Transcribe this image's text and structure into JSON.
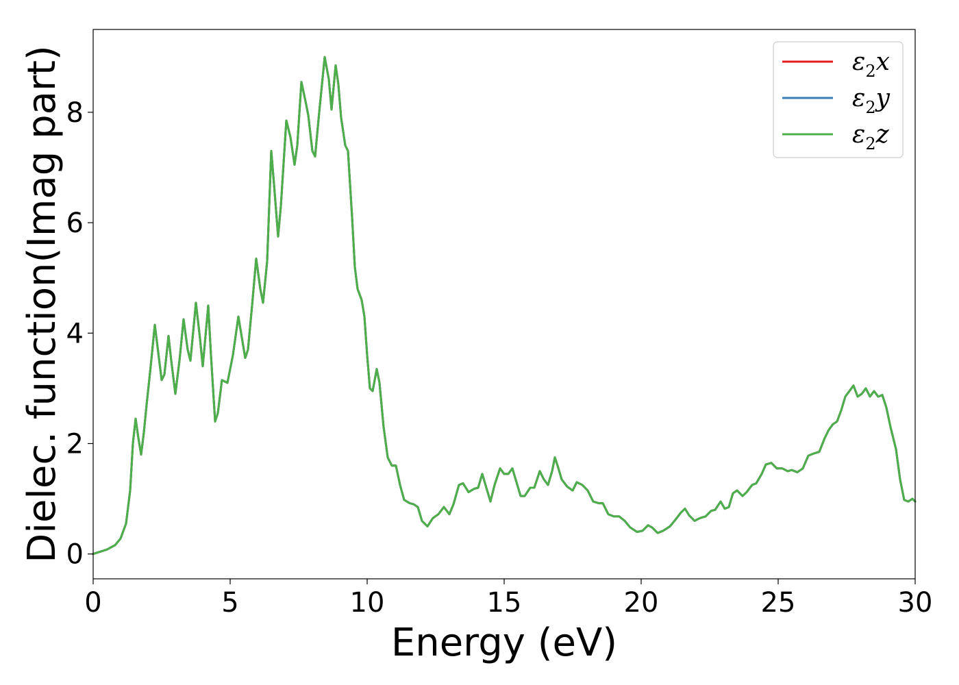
{
  "chart_data": {
    "type": "line",
    "title": "",
    "xlabel": "Energy (eV)",
    "ylabel": "Dielec. function(Imag part)",
    "xlim": [
      0,
      30
    ],
    "ylim": [
      -0.45,
      9.5
    ],
    "xticks": [
      "0",
      "5",
      "10",
      "15",
      "20",
      "25",
      "30"
    ],
    "yticks": [
      "0",
      "2",
      "4",
      "6",
      "8"
    ],
    "grid": false,
    "legend_position": "top-right",
    "series": [
      {
        "name": "ε2x",
        "label_main": "ε",
        "label_sub": "2",
        "label_tail": "x",
        "color": "#e41a1c",
        "points": [
          [
            0,
            0
          ],
          [
            0.5,
            0.08
          ],
          [
            0.8,
            0.16
          ],
          [
            1.0,
            0.28
          ],
          [
            1.2,
            0.55
          ],
          [
            1.35,
            1.15
          ],
          [
            1.45,
            2.0
          ],
          [
            1.55,
            2.45
          ],
          [
            1.65,
            2.1
          ],
          [
            1.75,
            1.8
          ],
          [
            1.85,
            2.2
          ],
          [
            1.95,
            2.7
          ],
          [
            2.1,
            3.4
          ],
          [
            2.25,
            4.15
          ],
          [
            2.35,
            3.75
          ],
          [
            2.5,
            3.15
          ],
          [
            2.6,
            3.25
          ],
          [
            2.75,
            3.95
          ],
          [
            2.85,
            3.5
          ],
          [
            3.0,
            2.9
          ],
          [
            3.15,
            3.5
          ],
          [
            3.3,
            4.25
          ],
          [
            3.45,
            3.7
          ],
          [
            3.55,
            3.5
          ],
          [
            3.75,
            4.55
          ],
          [
            3.9,
            3.9
          ],
          [
            4.0,
            3.4
          ],
          [
            4.2,
            4.5
          ],
          [
            4.3,
            3.6
          ],
          [
            4.45,
            2.4
          ],
          [
            4.55,
            2.55
          ],
          [
            4.7,
            3.15
          ],
          [
            4.9,
            3.1
          ],
          [
            5.1,
            3.6
          ],
          [
            5.3,
            4.3
          ],
          [
            5.4,
            4.0
          ],
          [
            5.55,
            3.55
          ],
          [
            5.65,
            3.7
          ],
          [
            5.8,
            4.5
          ],
          [
            5.95,
            5.35
          ],
          [
            6.1,
            4.8
          ],
          [
            6.2,
            4.55
          ],
          [
            6.35,
            5.3
          ],
          [
            6.5,
            7.3
          ],
          [
            6.6,
            6.7
          ],
          [
            6.75,
            5.75
          ],
          [
            6.85,
            6.3
          ],
          [
            7.05,
            7.85
          ],
          [
            7.2,
            7.55
          ],
          [
            7.35,
            7.05
          ],
          [
            7.45,
            7.4
          ],
          [
            7.6,
            8.55
          ],
          [
            7.75,
            8.2
          ],
          [
            7.85,
            7.95
          ],
          [
            8.0,
            7.3
          ],
          [
            8.1,
            7.2
          ],
          [
            8.25,
            8.0
          ],
          [
            8.45,
            9.0
          ],
          [
            8.6,
            8.6
          ],
          [
            8.7,
            8.05
          ],
          [
            8.85,
            8.85
          ],
          [
            8.95,
            8.5
          ],
          [
            9.05,
            7.9
          ],
          [
            9.2,
            7.4
          ],
          [
            9.3,
            7.3
          ],
          [
            9.45,
            6.1
          ],
          [
            9.55,
            5.2
          ],
          [
            9.65,
            4.8
          ],
          [
            9.8,
            4.6
          ],
          [
            9.9,
            4.3
          ],
          [
            10.0,
            3.6
          ],
          [
            10.1,
            3.0
          ],
          [
            10.2,
            2.95
          ],
          [
            10.35,
            3.35
          ],
          [
            10.45,
            3.1
          ],
          [
            10.6,
            2.3
          ],
          [
            10.75,
            1.75
          ],
          [
            10.9,
            1.6
          ],
          [
            11.05,
            1.6
          ],
          [
            11.2,
            1.25
          ],
          [
            11.35,
            0.98
          ],
          [
            11.55,
            0.92
          ],
          [
            11.7,
            0.9
          ],
          [
            11.85,
            0.85
          ],
          [
            12.0,
            0.6
          ],
          [
            12.2,
            0.5
          ],
          [
            12.4,
            0.65
          ],
          [
            12.6,
            0.72
          ],
          [
            12.8,
            0.85
          ],
          [
            13.0,
            0.72
          ],
          [
            13.15,
            0.9
          ],
          [
            13.35,
            1.25
          ],
          [
            13.5,
            1.28
          ],
          [
            13.7,
            1.12
          ],
          [
            13.9,
            1.18
          ],
          [
            14.05,
            1.2
          ],
          [
            14.2,
            1.45
          ],
          [
            14.35,
            1.2
          ],
          [
            14.5,
            0.95
          ],
          [
            14.65,
            1.25
          ],
          [
            14.85,
            1.55
          ],
          [
            15.0,
            1.45
          ],
          [
            15.15,
            1.45
          ],
          [
            15.3,
            1.55
          ],
          [
            15.45,
            1.3
          ],
          [
            15.6,
            1.05
          ],
          [
            15.75,
            1.05
          ],
          [
            15.95,
            1.2
          ],
          [
            16.1,
            1.2
          ],
          [
            16.3,
            1.5
          ],
          [
            16.45,
            1.35
          ],
          [
            16.6,
            1.25
          ],
          [
            16.75,
            1.5
          ],
          [
            16.85,
            1.75
          ],
          [
            16.95,
            1.6
          ],
          [
            17.1,
            1.35
          ],
          [
            17.3,
            1.22
          ],
          [
            17.5,
            1.15
          ],
          [
            17.65,
            1.3
          ],
          [
            17.85,
            1.25
          ],
          [
            18.05,
            1.15
          ],
          [
            18.25,
            0.95
          ],
          [
            18.45,
            0.92
          ],
          [
            18.6,
            0.92
          ],
          [
            18.8,
            0.72
          ],
          [
            19.0,
            0.68
          ],
          [
            19.2,
            0.68
          ],
          [
            19.4,
            0.6
          ],
          [
            19.6,
            0.48
          ],
          [
            19.85,
            0.4
          ],
          [
            20.05,
            0.42
          ],
          [
            20.25,
            0.52
          ],
          [
            20.4,
            0.48
          ],
          [
            20.6,
            0.38
          ],
          [
            20.8,
            0.42
          ],
          [
            21.05,
            0.5
          ],
          [
            21.25,
            0.62
          ],
          [
            21.45,
            0.75
          ],
          [
            21.6,
            0.82
          ],
          [
            21.75,
            0.7
          ],
          [
            21.95,
            0.6
          ],
          [
            22.15,
            0.65
          ],
          [
            22.35,
            0.68
          ],
          [
            22.55,
            0.78
          ],
          [
            22.7,
            0.8
          ],
          [
            22.9,
            0.95
          ],
          [
            23.05,
            0.82
          ],
          [
            23.2,
            0.85
          ],
          [
            23.35,
            1.1
          ],
          [
            23.5,
            1.15
          ],
          [
            23.7,
            1.05
          ],
          [
            23.85,
            1.12
          ],
          [
            24.05,
            1.25
          ],
          [
            24.2,
            1.28
          ],
          [
            24.4,
            1.45
          ],
          [
            24.55,
            1.62
          ],
          [
            24.75,
            1.65
          ],
          [
            24.95,
            1.55
          ],
          [
            25.15,
            1.55
          ],
          [
            25.35,
            1.5
          ],
          [
            25.5,
            1.52
          ],
          [
            25.7,
            1.48
          ],
          [
            25.9,
            1.55
          ],
          [
            26.1,
            1.78
          ],
          [
            26.3,
            1.82
          ],
          [
            26.5,
            1.85
          ],
          [
            26.7,
            2.1
          ],
          [
            26.85,
            2.25
          ],
          [
            27.0,
            2.35
          ],
          [
            27.15,
            2.4
          ],
          [
            27.3,
            2.6
          ],
          [
            27.45,
            2.85
          ],
          [
            27.6,
            2.95
          ],
          [
            27.75,
            3.05
          ],
          [
            27.9,
            2.85
          ],
          [
            28.05,
            2.9
          ],
          [
            28.2,
            3.0
          ],
          [
            28.35,
            2.85
          ],
          [
            28.5,
            2.95
          ],
          [
            28.65,
            2.85
          ],
          [
            28.8,
            2.88
          ],
          [
            28.95,
            2.65
          ],
          [
            29.1,
            2.3
          ],
          [
            29.3,
            1.9
          ],
          [
            29.45,
            1.35
          ],
          [
            29.6,
            0.98
          ],
          [
            29.75,
            0.95
          ],
          [
            29.9,
            1.0
          ],
          [
            30.0,
            0.95
          ]
        ]
      },
      {
        "name": "ε2y",
        "label_main": "ε",
        "label_sub": "2",
        "label_tail": "y",
        "color": "#377eb8",
        "same_as": 0
      },
      {
        "name": "ε2z",
        "label_main": "ε",
        "label_sub": "2",
        "label_tail": "z",
        "color": "#4daf4a",
        "same_as": 0
      }
    ]
  }
}
